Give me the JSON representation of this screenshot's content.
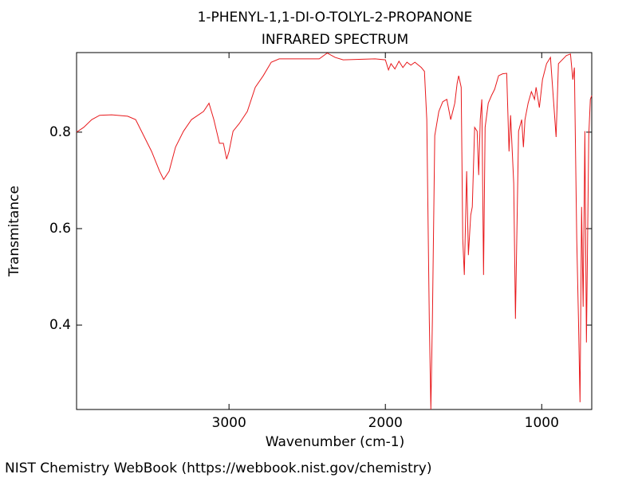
{
  "chart_data": {
    "type": "line",
    "title": "1-PHENYL-1,1-DI-O-TOLYL-2-PROPANONE",
    "subtitle": "INFRARED SPECTRUM",
    "x_label": "Wavenumber (cm-1)",
    "y_label": "Transmitance",
    "footer": "NIST Chemistry WebBook (https://webbook.nist.gov/chemistry)",
    "color": "#e8191c",
    "xlim": [
      3975,
      680
    ],
    "xticks": [
      3000,
      2000,
      1000
    ],
    "ylim": [
      0.225,
      0.965
    ],
    "yticks": [
      0.4,
      0.6,
      0.8
    ],
    "x": [
      3975,
      3929,
      3878,
      3827,
      3750,
      3648,
      3597,
      3546,
      3495,
      3444,
      3418,
      3383,
      3342,
      3291,
      3240,
      3163,
      3128,
      3097,
      3061,
      3036,
      3015,
      3000,
      2974,
      2934,
      2883,
      2832,
      2781,
      2730,
      2679,
      2423,
      2372,
      2321,
      2270,
      2066,
      2000,
      1980,
      1964,
      1939,
      1913,
      1888,
      1862,
      1837,
      1811,
      1770,
      1750,
      1735,
      1719,
      1709,
      1699,
      1684,
      1658,
      1633,
      1607,
      1582,
      1556,
      1541,
      1531,
      1515,
      1505,
      1495,
      1480,
      1469,
      1454,
      1444,
      1429,
      1413,
      1403,
      1393,
      1383,
      1372,
      1362,
      1342,
      1321,
      1301,
      1276,
      1250,
      1224,
      1209,
      1199,
      1179,
      1168,
      1148,
      1128,
      1117,
      1107,
      1087,
      1066,
      1046,
      1036,
      1015,
      995,
      969,
      944,
      908,
      893,
      842,
      816,
      801,
      791,
      776,
      765,
      755,
      745,
      735,
      724,
      714,
      699,
      689,
      680
    ],
    "values": [
      0.8,
      0.81,
      0.826,
      0.835,
      0.836,
      0.833,
      0.826,
      0.793,
      0.76,
      0.719,
      0.702,
      0.719,
      0.769,
      0.802,
      0.826,
      0.843,
      0.86,
      0.826,
      0.777,
      0.777,
      0.744,
      0.76,
      0.802,
      0.818,
      0.843,
      0.893,
      0.917,
      0.945,
      0.952,
      0.952,
      0.964,
      0.955,
      0.95,
      0.952,
      0.95,
      0.929,
      0.942,
      0.931,
      0.947,
      0.934,
      0.945,
      0.939,
      0.945,
      0.934,
      0.926,
      0.826,
      0.413,
      0.225,
      0.413,
      0.793,
      0.843,
      0.863,
      0.868,
      0.826,
      0.86,
      0.901,
      0.917,
      0.893,
      0.579,
      0.504,
      0.719,
      0.545,
      0.628,
      0.645,
      0.81,
      0.802,
      0.711,
      0.826,
      0.868,
      0.504,
      0.81,
      0.86,
      0.876,
      0.889,
      0.917,
      0.921,
      0.922,
      0.76,
      0.835,
      0.694,
      0.413,
      0.802,
      0.826,
      0.769,
      0.826,
      0.86,
      0.884,
      0.868,
      0.893,
      0.851,
      0.909,
      0.942,
      0.955,
      0.79,
      0.942,
      0.959,
      0.962,
      0.909,
      0.934,
      0.579,
      0.413,
      0.24,
      0.645,
      0.438,
      0.802,
      0.364,
      0.793,
      0.868,
      0.876
    ]
  }
}
